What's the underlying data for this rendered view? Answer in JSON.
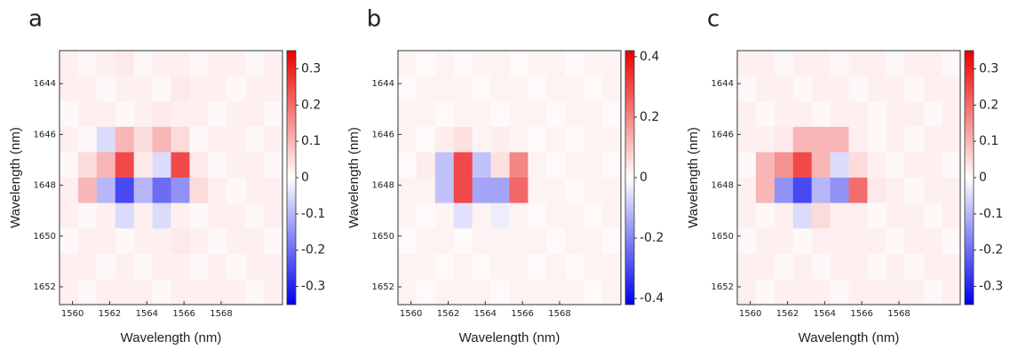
{
  "chart_data": [
    {
      "type": "heatmap",
      "title": "a",
      "xlabel": "Wavelength (nm)",
      "ylabel": "Wavelength (nm)",
      "x": [
        1559.8,
        1560.8,
        1561.8,
        1562.8,
        1563.8,
        1564.8,
        1565.8,
        1566.8,
        1567.8,
        1568.8,
        1569.8,
        1570.8
      ],
      "y": [
        1643.2,
        1644.2,
        1645.2,
        1646.2,
        1647.2,
        1648.2,
        1649.2,
        1650.2,
        1651.2,
        1652.2
      ],
      "z": [
        [
          0.02,
          0.01,
          0.02,
          0.03,
          0.01,
          0.02,
          0.02,
          0.01,
          0.02,
          0.02,
          0.01,
          0.02
        ],
        [
          0.02,
          0.02,
          0.01,
          0.02,
          0.02,
          0.01,
          0.03,
          0.02,
          0.02,
          0.01,
          0.02,
          0.02
        ],
        [
          0.01,
          0.02,
          0.02,
          0.01,
          0.02,
          0.03,
          0.02,
          0.02,
          0.01,
          0.02,
          0.02,
          0.01
        ],
        [
          0.02,
          0.01,
          -0.05,
          0.1,
          0.05,
          0.1,
          0.05,
          0.01,
          0.02,
          0.02,
          0.01,
          0.02
        ],
        [
          0.01,
          0.05,
          0.1,
          0.25,
          0.03,
          -0.05,
          0.25,
          0.03,
          0.01,
          0.02,
          0.02,
          0.01
        ],
        [
          0.02,
          0.1,
          -0.1,
          -0.25,
          -0.1,
          -0.2,
          -0.15,
          0.05,
          0.02,
          0.01,
          0.02,
          0.02
        ],
        [
          0.02,
          0.01,
          0.02,
          -0.05,
          0.02,
          -0.05,
          0.02,
          0.01,
          0.02,
          0.02,
          0.01,
          0.02
        ],
        [
          0.01,
          0.02,
          0.02,
          0.01,
          0.02,
          0.02,
          0.03,
          0.02,
          0.01,
          0.02,
          0.02,
          0.01
        ],
        [
          0.02,
          0.02,
          0.01,
          0.02,
          0.01,
          0.02,
          0.02,
          0.01,
          0.02,
          0.01,
          0.02,
          0.02
        ],
        [
          0.02,
          0.01,
          0.02,
          0.02,
          0.02,
          0.01,
          0.02,
          0.02,
          0.02,
          0.02,
          0.01,
          0.02
        ]
      ],
      "xlim": [
        1559.3,
        1571.3
      ],
      "ylim": [
        1642.7,
        1652.7
      ],
      "y_inverted": true,
      "xticks": [
        1560,
        1562,
        1564,
        1566,
        1568
      ],
      "yticks": [
        1644,
        1646,
        1648,
        1650,
        1652
      ],
      "clim": [
        -0.35,
        0.35
      ],
      "cticks": [
        -0.3,
        -0.2,
        -0.1,
        0,
        0.1,
        0.2,
        0.3
      ]
    },
    {
      "type": "heatmap",
      "title": "b",
      "xlabel": "Wavelength (nm)",
      "ylabel": "Wavelength (nm)",
      "x": [
        1559.8,
        1560.8,
        1561.8,
        1562.8,
        1563.8,
        1564.8,
        1565.8,
        1566.8,
        1567.8,
        1568.8,
        1569.8,
        1570.8
      ],
      "y": [
        1643.2,
        1644.2,
        1645.2,
        1646.2,
        1647.2,
        1648.2,
        1649.2,
        1650.2,
        1651.2,
        1652.2
      ],
      "z": [
        [
          0.02,
          0.01,
          0.02,
          0.01,
          0.02,
          0.02,
          0.01,
          0.02,
          0.02,
          0.01,
          0.02,
          0.02
        ],
        [
          0.01,
          0.02,
          0.02,
          0.02,
          0.01,
          0.02,
          0.02,
          0.01,
          0.02,
          0.02,
          0.01,
          0.02
        ],
        [
          0.02,
          0.02,
          0.01,
          0.02,
          0.02,
          0.01,
          0.02,
          0.02,
          0.01,
          0.02,
          0.02,
          0.01
        ],
        [
          0.02,
          0.01,
          0.03,
          0.05,
          0.02,
          0.03,
          0.02,
          0.01,
          0.02,
          0.01,
          0.02,
          0.02
        ],
        [
          0.01,
          0.03,
          -0.1,
          0.3,
          -0.1,
          0.05,
          0.2,
          0.02,
          0.01,
          0.02,
          0.02,
          0.01
        ],
        [
          0.02,
          0.02,
          -0.1,
          0.3,
          -0.15,
          -0.15,
          0.25,
          0.02,
          0.02,
          0.01,
          0.02,
          0.02
        ],
        [
          0.02,
          0.01,
          0.02,
          -0.05,
          0.02,
          -0.03,
          0.02,
          0.01,
          0.02,
          0.02,
          0.01,
          0.02
        ],
        [
          0.01,
          0.02,
          0.02,
          0.01,
          0.02,
          0.02,
          0.02,
          0.02,
          0.01,
          0.02,
          0.02,
          0.01
        ],
        [
          0.02,
          0.02,
          0.01,
          0.02,
          0.01,
          0.02,
          0.02,
          0.01,
          0.02,
          0.01,
          0.02,
          0.02
        ],
        [
          0.02,
          0.01,
          0.02,
          0.02,
          0.02,
          0.01,
          0.02,
          0.02,
          0.02,
          0.02,
          0.01,
          0.02
        ]
      ],
      "xlim": [
        1559.3,
        1571.3
      ],
      "ylim": [
        1642.7,
        1652.7
      ],
      "y_inverted": true,
      "xticks": [
        1560,
        1562,
        1564,
        1566,
        1568
      ],
      "yticks": [
        1644,
        1646,
        1648,
        1650,
        1652
      ],
      "clim": [
        -0.42,
        0.42
      ],
      "cticks": [
        -0.4,
        -0.2,
        0,
        0.2,
        0.4
      ]
    },
    {
      "type": "heatmap",
      "title": "c",
      "xlabel": "Wavelength (nm)",
      "ylabel": "Wavelength (nm)",
      "x": [
        1559.8,
        1560.8,
        1561.8,
        1562.8,
        1563.8,
        1564.8,
        1565.8,
        1566.8,
        1567.8,
        1568.8,
        1569.8,
        1570.8
      ],
      "y": [
        1643.2,
        1644.2,
        1645.2,
        1646.2,
        1647.2,
        1648.2,
        1649.2,
        1650.2,
        1651.2,
        1652.2
      ],
      "z": [
        [
          0.02,
          0.02,
          0.01,
          0.02,
          0.02,
          0.01,
          0.02,
          0.02,
          0.01,
          0.02,
          0.02,
          0.01
        ],
        [
          0.01,
          0.02,
          0.02,
          0.01,
          0.02,
          0.02,
          0.01,
          0.02,
          0.02,
          0.01,
          0.02,
          0.02
        ],
        [
          0.02,
          0.01,
          0.02,
          0.02,
          0.01,
          0.02,
          0.02,
          0.01,
          0.02,
          0.02,
          0.01,
          0.02
        ],
        [
          0.02,
          0.02,
          0.03,
          0.1,
          0.1,
          0.1,
          0.02,
          0.01,
          0.02,
          0.01,
          0.02,
          0.02
        ],
        [
          0.01,
          0.1,
          0.15,
          0.25,
          0.1,
          -0.05,
          0.05,
          0.02,
          0.01,
          0.02,
          0.02,
          0.01
        ],
        [
          0.02,
          0.1,
          -0.15,
          -0.25,
          -0.1,
          -0.15,
          0.2,
          0.03,
          0.02,
          0.01,
          0.02,
          0.02
        ],
        [
          0.02,
          0.01,
          0.02,
          -0.05,
          0.05,
          0.02,
          0.02,
          0.01,
          0.02,
          0.02,
          0.01,
          0.02
        ],
        [
          0.01,
          0.02,
          0.02,
          0.01,
          0.02,
          0.02,
          0.02,
          0.02,
          0.01,
          0.02,
          0.02,
          0.01
        ],
        [
          0.02,
          0.02,
          0.01,
          0.02,
          0.01,
          0.02,
          0.02,
          0.01,
          0.02,
          0.01,
          0.02,
          0.02
        ],
        [
          0.02,
          0.01,
          0.02,
          0.02,
          0.02,
          0.01,
          0.02,
          0.02,
          0.02,
          0.02,
          0.01,
          0.02
        ]
      ],
      "xlim": [
        1559.3,
        1571.3
      ],
      "ylim": [
        1642.7,
        1652.7
      ],
      "y_inverted": true,
      "xticks": [
        1560,
        1562,
        1564,
        1566,
        1568
      ],
      "yticks": [
        1644,
        1646,
        1648,
        1650,
        1652
      ],
      "clim": [
        -0.35,
        0.35
      ],
      "cticks": [
        -0.3,
        -0.2,
        -0.1,
        0,
        0.1,
        0.2,
        0.3
      ]
    }
  ]
}
